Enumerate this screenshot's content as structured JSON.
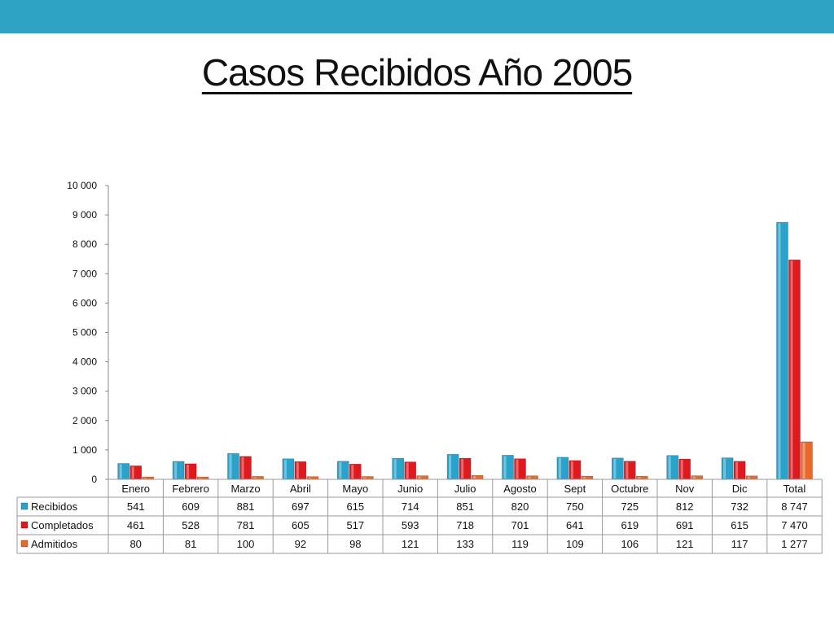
{
  "header": {
    "title": "Casos Recibidos Año 2005"
  },
  "colors": {
    "top_bar": "#2ea3c3"
  },
  "chart_data": {
    "type": "bar",
    "title": "Casos Recibidos Año 2005",
    "categories": [
      "Enero",
      "Febrero",
      "Marzo",
      "Abril",
      "Mayo",
      "Junio",
      "Julio",
      "Agosto",
      "Sept",
      "Octubre",
      "Nov",
      "Dic",
      "Total"
    ],
    "series": [
      {
        "name": "Recibidos",
        "color": "#29a3cc",
        "values": [
          541,
          609,
          881,
          697,
          615,
          714,
          851,
          820,
          750,
          725,
          812,
          732,
          8747
        ],
        "labels": [
          "541",
          "609",
          "881",
          "697",
          "615",
          "714",
          "851",
          "820",
          "750",
          "725",
          "812",
          "732",
          "8 747"
        ]
      },
      {
        "name": "Completados",
        "color": "#e0191e",
        "values": [
          461,
          528,
          781,
          605,
          517,
          593,
          718,
          701,
          641,
          619,
          691,
          615,
          7470
        ],
        "labels": [
          "461",
          "528",
          "781",
          "605",
          "517",
          "593",
          "718",
          "701",
          "641",
          "619",
          "691",
          "615",
          "7 470"
        ]
      },
      {
        "name": "Admitidos",
        "color": "#e8692a",
        "values": [
          80,
          81,
          100,
          92,
          98,
          121,
          133,
          119,
          109,
          106,
          121,
          117,
          1277
        ],
        "labels": [
          "80",
          "81",
          "100",
          "92",
          "98",
          "121",
          "133",
          "119",
          "109",
          "106",
          "121",
          "117",
          "1 277"
        ]
      }
    ],
    "yticks": [
      "0",
      "1 000",
      "2 000",
      "3 000",
      "4 000",
      "5 000",
      "6 000",
      "7 000",
      "8 000",
      "9 000",
      "10 000"
    ],
    "ylim": [
      0,
      10000
    ],
    "grid": false,
    "legend": "data-table"
  }
}
